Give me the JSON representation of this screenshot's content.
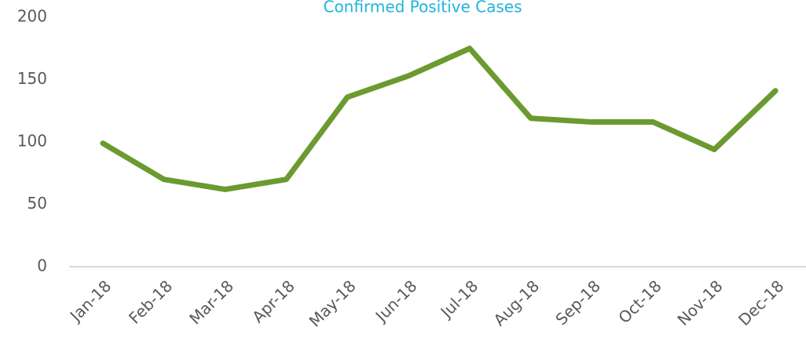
{
  "chart_data": {
    "type": "line",
    "title": "Confirmed Positive Cases",
    "categories": [
      "Jan-18",
      "Feb-18",
      "Mar-18",
      "Apr-18",
      "May-18",
      "Jun-18",
      "Jul-18",
      "Aug-18",
      "Sep-18",
      "Oct-18",
      "Nov-18",
      "Dec-18"
    ],
    "series": [
      {
        "name": "Confirmed Positive Cases",
        "color": "#6b9a2f",
        "values": [
          99,
          70,
          62,
          70,
          136,
          153,
          175,
          119,
          116,
          116,
          94,
          141
        ]
      }
    ],
    "ylim": [
      0,
      200
    ],
    "yticks": [
      0,
      50,
      100,
      150,
      200
    ],
    "grid": false
  }
}
